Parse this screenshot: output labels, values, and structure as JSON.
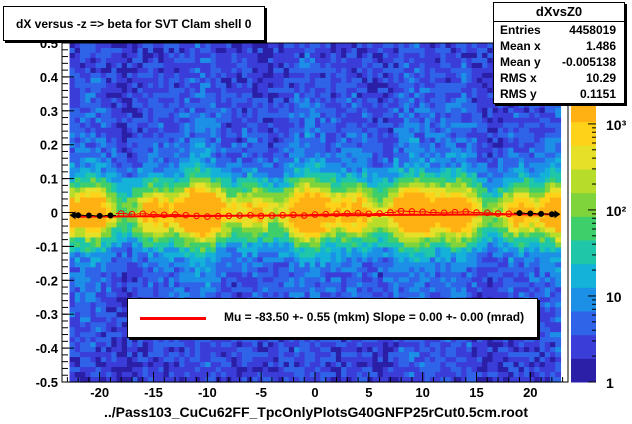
{
  "title": "dX versus -z  => beta for SVT Clam shell 0",
  "stats": {
    "name": "dXvsZ0",
    "rows": [
      {
        "label": "Entries",
        "value": "4458019"
      },
      {
        "label": "Mean x",
        "value": "1.486"
      },
      {
        "label": "Mean y",
        "value": "-0.005138"
      },
      {
        "label": "RMS x",
        "value": "10.29"
      },
      {
        "label": "RMS y",
        "value": "0.1151"
      }
    ]
  },
  "legend": {
    "text": "Mu =  -83.50 +-  0.55 (mkm) Slope =    0.00 +-  0.00 (mrad)",
    "color": "#ff0000"
  },
  "footer": "../Pass103_CuCu62FF_TpcOnlyPlotsG40GNFP25rCut0.5cm.root",
  "chart_data": {
    "type": "heatmap",
    "xlim": [
      -23.5,
      23.5
    ],
    "ylim": [
      -0.5,
      0.5
    ],
    "x_ticks": [
      -20,
      -15,
      -10,
      -5,
      0,
      5,
      10,
      15,
      20
    ],
    "x_tick_labels": [
      "-20",
      "-15",
      "-10",
      "-5",
      "0",
      "5",
      "10",
      "15",
      "20"
    ],
    "y_ticks": [
      -0.5,
      -0.4,
      -0.3,
      -0.2,
      -0.1,
      0,
      0.1,
      0.2,
      0.3,
      0.4,
      0.5
    ],
    "y_tick_labels": [
      "-0.5",
      "-0.4",
      "-0.3",
      "-0.2",
      "-0.1",
      "0",
      "0.1",
      "0.2",
      "0.3",
      "0.4",
      "0.5"
    ],
    "colorbar": {
      "scale": "log",
      "range": [
        1,
        2000
      ],
      "ticks": [
        1,
        10,
        100,
        1000
      ],
      "tick_labels": [
        "1",
        "10",
        "10²",
        "10³"
      ]
    },
    "fit_line": {
      "x": [
        -22,
        22
      ],
      "y": [
        -0.012,
        -0.005
      ],
      "color": "#ff0000"
    },
    "profile_x": [
      -22,
      -21,
      -20,
      -19,
      -18,
      -17,
      -16,
      -15,
      -14,
      -13,
      -12,
      -11,
      -10,
      -9,
      -8,
      -7,
      -6,
      -5,
      -4,
      -3,
      -2,
      -1,
      0,
      1,
      2,
      3,
      4,
      5,
      6,
      7,
      8,
      9,
      10,
      11,
      12,
      13,
      14,
      15,
      16,
      17,
      18,
      19,
      20,
      21,
      22
    ],
    "profile_y": [
      -0.008,
      -0.009,
      -0.01,
      -0.009,
      -0.003,
      -0.005,
      -0.004,
      -0.006,
      -0.007,
      -0.006,
      -0.008,
      -0.01,
      -0.012,
      -0.011,
      -0.01,
      -0.009,
      -0.008,
      -0.01,
      -0.009,
      -0.008,
      -0.007,
      -0.009,
      -0.006,
      -0.005,
      -0.004,
      -0.003,
      -0.002,
      -0.004,
      -0.003,
      0.0,
      0.004,
      0.003,
      0.002,
      0.0,
      -0.001,
      0.001,
      0.002,
      0.0,
      -0.001,
      -0.003,
      -0.004,
      -0.002,
      -0.003,
      -0.004,
      -0.005
    ]
  }
}
